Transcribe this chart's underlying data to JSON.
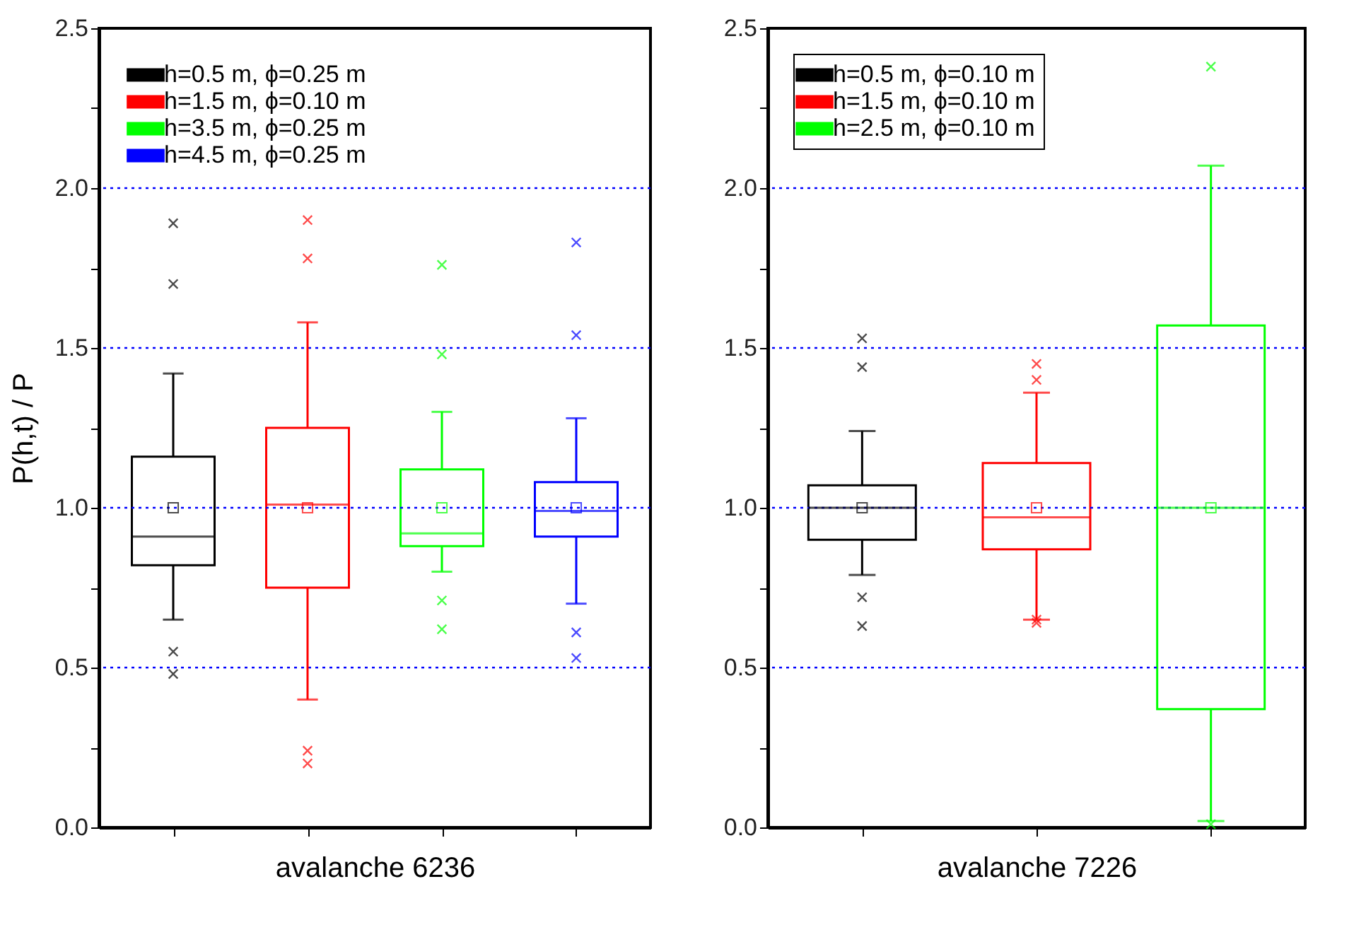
{
  "chart_data": [
    {
      "type": "box",
      "xlabel": "avalanche 6236",
      "ylabel": "P(h,t) / P",
      "categories": [
        null,
        null,
        null,
        null
      ],
      "ylim": [
        0,
        2.5
      ],
      "yticks": [
        {
          "value": 0,
          "label": "0.0"
        },
        {
          "value": 0.25,
          "label": null
        },
        {
          "value": 0.5,
          "label": "0.5"
        },
        {
          "value": 0.75,
          "label": null
        },
        {
          "value": 1,
          "label": "1.0"
        },
        {
          "value": 1.25,
          "label": null
        },
        {
          "value": 1.5,
          "label": "1.5"
        },
        {
          "value": 1.75,
          "label": null
        },
        {
          "value": 2,
          "label": "2.0"
        },
        {
          "value": 2.25,
          "label": null
        },
        {
          "value": 2.5,
          "label": "2.5"
        }
      ],
      "grid": false,
      "legend": "top left",
      "ref_lines": [
        {
          "axis": "y",
          "value": 0.5,
          "color": "#0000ff",
          "line_style": "dotted"
        },
        {
          "axis": "y",
          "value": 1.0,
          "color": "#0000ff",
          "line_style": "dotted"
        },
        {
          "axis": "y",
          "value": 1.5,
          "color": "#0000ff",
          "line_style": "dotted"
        },
        {
          "axis": "y",
          "value": 2.0,
          "color": "#0000ff",
          "line_style": "dotted"
        }
      ],
      "series": [
        {
          "name": "h=0.5 m, ϕ=0.25 m",
          "color": "#000000",
          "boxes": [
            {
              "low": 0.65,
              "q1": 0.82,
              "median": 0.91,
              "q3": 1.16,
              "high": 1.42,
              "mean": 1.0,
              "outliers": [
                1.7,
                0.55,
                1.89,
                0.48
              ]
            },
            null,
            null,
            null
          ]
        },
        {
          "name": "h=1.5 m, ϕ=0.10 m",
          "color": "#ff0000",
          "boxes": [
            null,
            {
              "low": 0.4,
              "q1": 0.75,
              "median": 1.01,
              "q3": 1.25,
              "high": 1.58,
              "mean": 1.0,
              "outliers": [
                1.78,
                0.24,
                1.9,
                0.2
              ]
            },
            null,
            null
          ]
        },
        {
          "name": "h=3.5 m, ϕ=0.25 m",
          "color": "#00ff00",
          "boxes": [
            null,
            null,
            {
              "low": 0.8,
              "q1": 0.88,
              "median": 0.92,
              "q3": 1.12,
              "high": 1.3,
              "mean": 1.0,
              "outliers": [
                1.48,
                0.71,
                1.76,
                0.62
              ]
            },
            null
          ]
        },
        {
          "name": "h=4.5 m, ϕ=0.25 m",
          "color": "#0000ff",
          "boxes": [
            null,
            null,
            null,
            {
              "low": 0.7,
              "q1": 0.91,
              "median": 0.99,
              "q3": 1.08,
              "high": 1.28,
              "mean": 1.0,
              "outliers": [
                1.54,
                0.61,
                1.83,
                0.53
              ]
            }
          ]
        }
      ]
    },
    {
      "type": "box",
      "xlabel": "avalanche 7226",
      "categories": [
        null,
        null,
        null
      ],
      "ylim": [
        0,
        2.5
      ],
      "yticks": [
        {
          "value": 0,
          "label": "0.0"
        },
        {
          "value": 0.25,
          "label": null
        },
        {
          "value": 0.5,
          "label": "0.5"
        },
        {
          "value": 0.75,
          "label": null
        },
        {
          "value": 1,
          "label": "1.0"
        },
        {
          "value": 1.25,
          "label": null
        },
        {
          "value": 1.5,
          "label": "1.5"
        },
        {
          "value": 1.75,
          "label": null
        },
        {
          "value": 2,
          "label": "2.0"
        },
        {
          "value": 2.25,
          "label": null
        },
        {
          "value": 2.5,
          "label": "2.5"
        }
      ],
      "grid": false,
      "legend": "top left",
      "ref_lines": [
        {
          "axis": "y",
          "value": 0.5,
          "color": "#0000ff",
          "line_style": "dotted"
        },
        {
          "axis": "y",
          "value": 1.0,
          "color": "#0000ff",
          "line_style": "dotted"
        },
        {
          "axis": "y",
          "value": 1.5,
          "color": "#0000ff",
          "line_style": "dotted"
        },
        {
          "axis": "y",
          "value": 2.0,
          "color": "#0000ff",
          "line_style": "dotted"
        }
      ],
      "series": [
        {
          "name": "h=0.5 m, ϕ=0.10 m",
          "color": "#000000",
          "boxes": [
            {
              "low": 0.79,
              "q1": 0.9,
              "median": 1.0,
              "q3": 1.07,
              "high": 1.24,
              "mean": 1.0,
              "outliers": [
                1.44,
                0.72,
                1.53,
                0.63
              ]
            },
            null,
            null
          ]
        },
        {
          "name": "h=1.5 m, ϕ=0.10 m",
          "color": "#ff0000",
          "boxes": [
            null,
            {
              "low": 0.65,
              "q1": 0.87,
              "median": 0.97,
              "q3": 1.14,
              "high": 1.36,
              "mean": 1.0,
              "outliers": [
                1.4,
                0.65,
                1.45,
                0.64
              ]
            },
            null
          ]
        },
        {
          "name": "h=2.5 m, ϕ=0.10 m",
          "color": "#00ff00",
          "boxes": [
            null,
            null,
            {
              "low": 0.02,
              "q1": 0.37,
              "median": 1.0,
              "q3": 1.57,
              "high": 2.07,
              "mean": 1.0,
              "outliers": [
                2.38,
                0.01
              ]
            }
          ]
        }
      ]
    }
  ]
}
